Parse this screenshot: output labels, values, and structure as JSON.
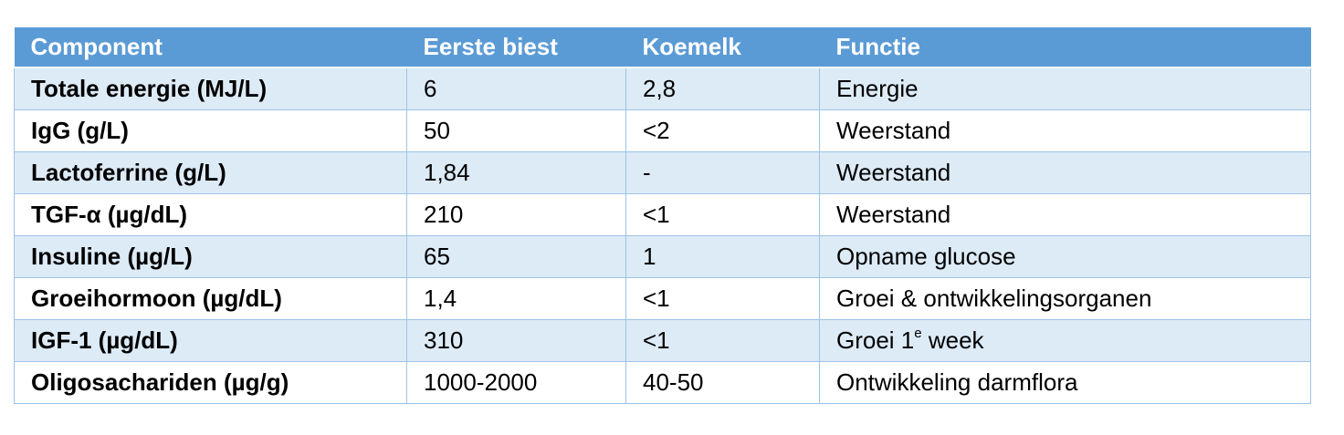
{
  "table": {
    "header": [
      "Component",
      "Eerste biest",
      "Koemelk",
      "Functie"
    ],
    "rows": [
      [
        "Totale energie (MJ/L)",
        "6",
        "2,8",
        "Energie"
      ],
      [
        "IgG (g/L)",
        "50",
        "<2",
        "Weerstand"
      ],
      [
        "Lactoferrine (g/L)",
        "1,84",
        "-",
        "Weerstand"
      ],
      [
        "TGF-α (µg/dL)",
        "210",
        "<1",
        "Weerstand"
      ],
      [
        "Insuline (µg/L)",
        "65",
        "1",
        "Opname glucose"
      ],
      [
        "Groeihormoon (µg/dL)",
        "1,4",
        "<1",
        "Groei & ontwikkelingsorganen"
      ],
      [
        "IGF-1 (µg/dL)",
        "310",
        "<1",
        {
          "base": "Groei 1",
          "sup": "e",
          "tail": " week"
        }
      ],
      [
        "Oligosachariden (µg/g)",
        "1000-2000",
        "40-50",
        "Ontwikkeling darmflora"
      ]
    ]
  }
}
